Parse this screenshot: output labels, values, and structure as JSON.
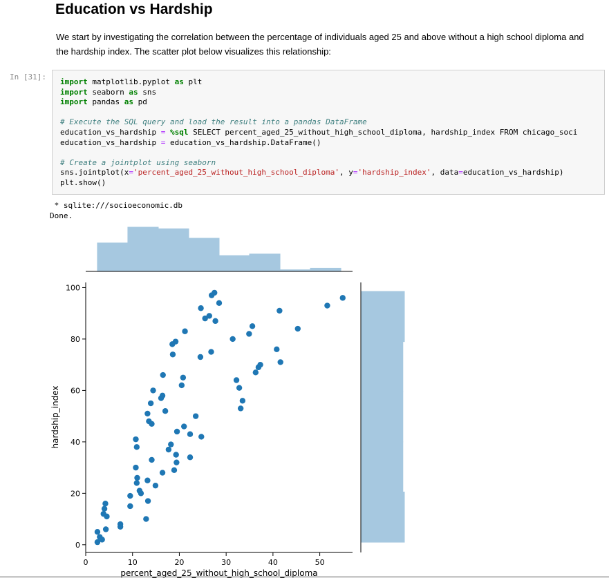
{
  "notebook": {
    "heading": "Education vs Hardship",
    "intro": "We start by investigating the correlation between the percentage of individuals aged 25 and above without a high school diploma and the hardship index. The scatter plot below visualizes this relationship:",
    "prompt": "In [31]:",
    "code": {
      "l1": {
        "kw": "import",
        "a": " matplotlib.pyplot ",
        "kw2": "as",
        "b": " plt"
      },
      "l2": {
        "kw": "import",
        "a": " seaborn ",
        "kw2": "as",
        "b": " sns"
      },
      "l3": {
        "kw": "import",
        "a": " pandas ",
        "kw2": "as",
        "b": " pd"
      },
      "c1": "# Execute the SQL query and load the result into a pandas DataFrame",
      "l4a": "education_vs_hardship ",
      "l4eq": "=",
      "l4mg": " %sql",
      "l4b": " SELECT percent_aged_25_without_high_school_diploma, hardship_index FROM chicago_soci",
      "l5a": "education_vs_hardship ",
      "l5eq": "=",
      "l5b": " education_vs_hardship.DataFrame()",
      "c2": "# Create a jointplot using seaborn",
      "l6a": "sns.jointplot(x",
      "l6eq1": "=",
      "l6s1": "'percent_aged_25_without_high_school_diploma'",
      "l6b": ", y",
      "l6eq2": "=",
      "l6s2": "'hardship_index'",
      "l6c": ", data",
      "l6eq3": "=",
      "l6d": "education_vs_hardship)",
      "l7": "plt.show()"
    },
    "output_line1": " * sqlite:///socioeconomic.db",
    "output_line2": "Done."
  },
  "chart_data": {
    "type": "scatter",
    "xlabel": "percent_aged_25_without_high_school_diploma",
    "ylabel": "hardship_index",
    "xlim": [
      0,
      57
    ],
    "ylim": [
      -3,
      102
    ],
    "xticks": [
      "0",
      "10",
      "20",
      "30",
      "40",
      "50"
    ],
    "yticks": [
      "0",
      "20",
      "40",
      "60",
      "80",
      "100"
    ],
    "point_color": "#1f77b4",
    "hist_color": "#a6c8e0",
    "points": [
      [
        2.5,
        5
      ],
      [
        2.5,
        1
      ],
      [
        3,
        3
      ],
      [
        3.5,
        2
      ],
      [
        3.8,
        12
      ],
      [
        4,
        14
      ],
      [
        4.2,
        16
      ],
      [
        4.5,
        11
      ],
      [
        4.3,
        6
      ],
      [
        7.4,
        8
      ],
      [
        7.4,
        7
      ],
      [
        9.5,
        19
      ],
      [
        9.5,
        15
      ],
      [
        10.7,
        41
      ],
      [
        10.9,
        38
      ],
      [
        10.7,
        30
      ],
      [
        10.9,
        24
      ],
      [
        11,
        26
      ],
      [
        11.5,
        21
      ],
      [
        11.8,
        20
      ],
      [
        12.9,
        10
      ],
      [
        13.2,
        25
      ],
      [
        13.3,
        17
      ],
      [
        13.2,
        51
      ],
      [
        13.5,
        48
      ],
      [
        13.9,
        55
      ],
      [
        14.1,
        47
      ],
      [
        14.1,
        33
      ],
      [
        14.4,
        60
      ],
      [
        14.9,
        23
      ],
      [
        16.1,
        57
      ],
      [
        16.4,
        58
      ],
      [
        16.4,
        28
      ],
      [
        16.5,
        66
      ],
      [
        17,
        52
      ],
      [
        17.7,
        37
      ],
      [
        18.2,
        39
      ],
      [
        18.5,
        78
      ],
      [
        18.6,
        74
      ],
      [
        19.2,
        79
      ],
      [
        18.9,
        29
      ],
      [
        19.3,
        35
      ],
      [
        19.4,
        32
      ],
      [
        19.5,
        44
      ],
      [
        20.5,
        62
      ],
      [
        20.8,
        65
      ],
      [
        21,
        46
      ],
      [
        21.2,
        83
      ],
      [
        22.3,
        43
      ],
      [
        22.3,
        34
      ],
      [
        23.5,
        50
      ],
      [
        24.5,
        73
      ],
      [
        24.6,
        92
      ],
      [
        24.7,
        42
      ],
      [
        25.5,
        88
      ],
      [
        26.4,
        89
      ],
      [
        26.8,
        75
      ],
      [
        26.9,
        97
      ],
      [
        27.5,
        98
      ],
      [
        27.7,
        87
      ],
      [
        28.5,
        94
      ],
      [
        31.4,
        80
      ],
      [
        32.2,
        64
      ],
      [
        32.8,
        61
      ],
      [
        33.1,
        53
      ],
      [
        33.5,
        56
      ],
      [
        34.9,
        82
      ],
      [
        35.6,
        85
      ],
      [
        36.3,
        67
      ],
      [
        36.9,
        69
      ],
      [
        37.3,
        70
      ],
      [
        40.8,
        76
      ],
      [
        41.4,
        91
      ],
      [
        41.6,
        71
      ],
      [
        45.3,
        84
      ],
      [
        51.6,
        93
      ],
      [
        54.9,
        96
      ]
    ],
    "x_hist": {
      "edges": [
        2.5,
        9.0,
        15.5,
        22.0,
        28.5,
        35.0,
        41.5,
        48.0,
        54.5
      ],
      "counts": [
        9,
        14,
        13.5,
        10.5,
        5,
        5.5,
        0.5,
        1
      ]
    },
    "y_hist": {
      "edges": [
        1,
        20.5,
        40,
        59.5,
        79,
        98.5
      ],
      "counts": [
        8.5,
        8.2,
        8.2,
        8.2,
        8.5
      ]
    }
  }
}
